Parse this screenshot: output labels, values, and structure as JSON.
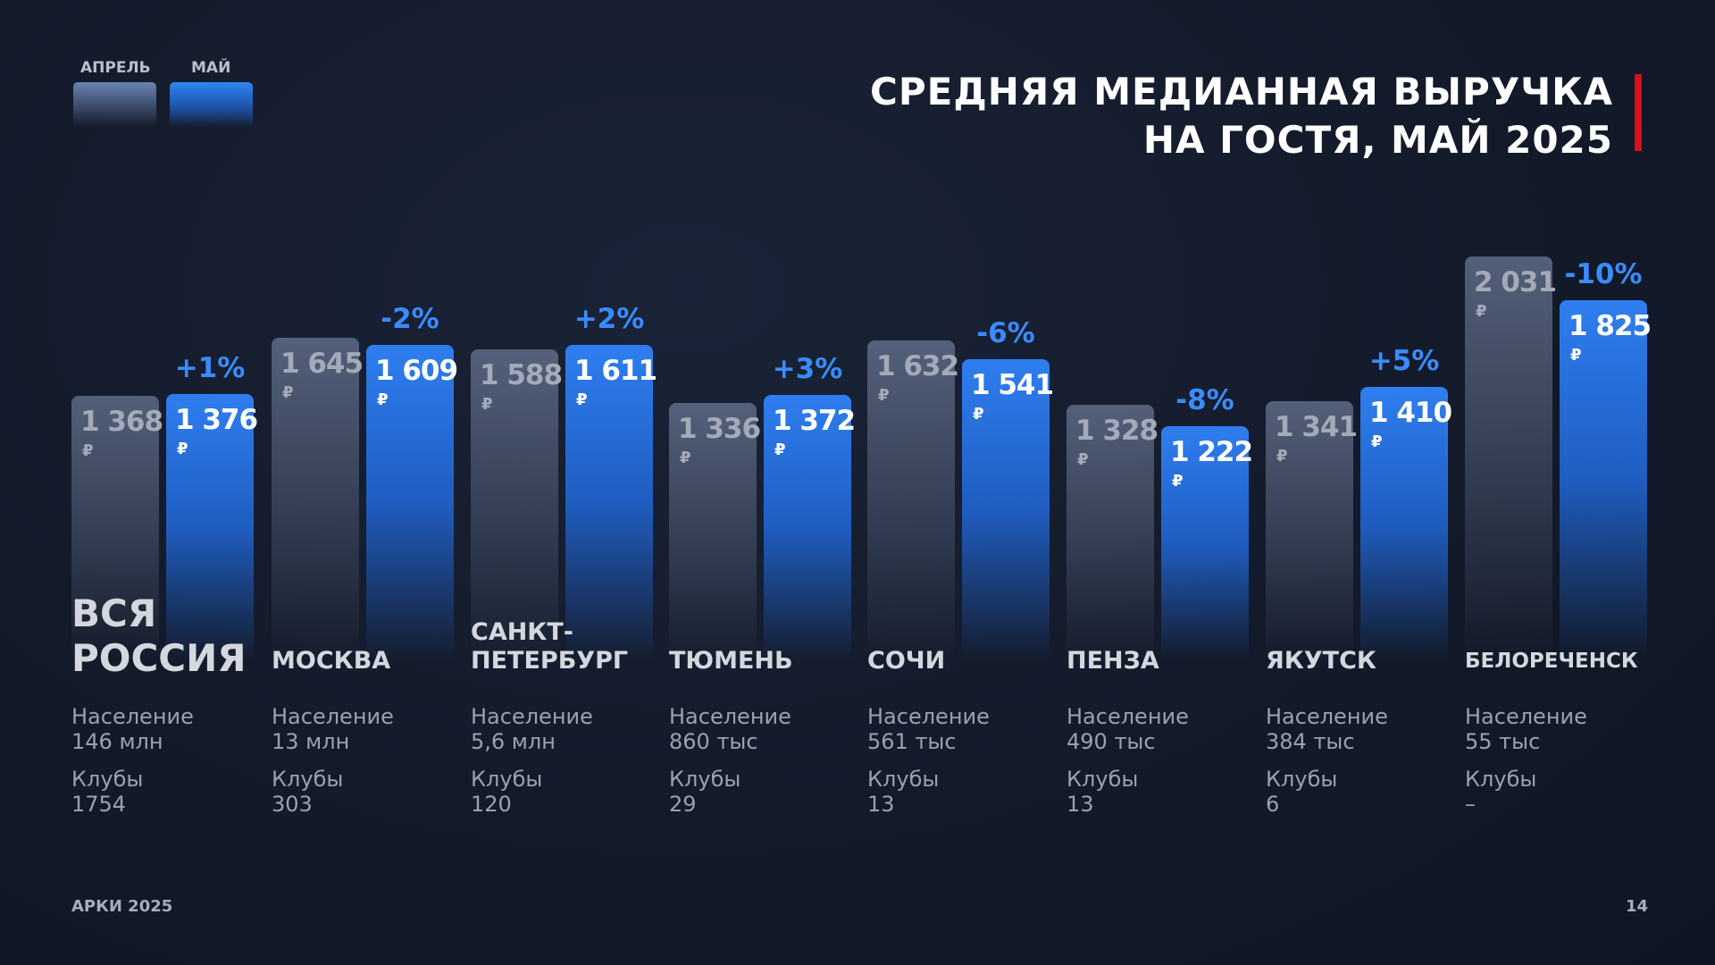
{
  "title_lines": [
    "СРЕДНЯЯ МЕДИАННАЯ ВЫРУЧКА",
    "НА ГОСТЯ, МАЙ 2025"
  ],
  "legend": [
    {
      "label": "АПРЕЛЬ",
      "color": "#5f6c87"
    },
    {
      "label": "МАЙ",
      "color": "#2f7ef0"
    }
  ],
  "footer": {
    "left": "АРКИ 2025",
    "page": "14"
  },
  "currency": "₽",
  "stat_labels": {
    "population": "Население",
    "clubs": "Клубы"
  },
  "chart_data": {
    "type": "bar",
    "categories": [
      "ВСЯ РОССИЯ",
      "МОСКВА",
      "САНКТ-ПЕТЕРБУРГ",
      "ТЮМЕНЬ",
      "СОЧИ",
      "ПЕНЗА",
      "ЯКУТСК",
      "БЕЛОРЕЧЕНСК"
    ],
    "series": [
      {
        "name": "АПРЕЛЬ",
        "values": [
          1368,
          1645,
          1588,
          1336,
          1632,
          1328,
          1341,
          2031
        ],
        "labels": [
          "1 368",
          "1 645",
          "1 588",
          "1 336",
          "1 632",
          "1 328",
          "1 341",
          "2 031"
        ]
      },
      {
        "name": "МАЙ",
        "values": [
          1376,
          1609,
          1611,
          1372,
          1541,
          1222,
          1410,
          1825
        ],
        "labels": [
          "1 376",
          "1 609",
          "1 611",
          "1 372",
          "1 541",
          "1 222",
          "1 410",
          "1 825"
        ]
      }
    ],
    "change": [
      "+1%",
      "-2%",
      "+2%",
      "+3%",
      "-6%",
      "-8%",
      "+5%",
      "-10%"
    ],
    "population": [
      "146 млн",
      "13 млн",
      "5,6 млн",
      "860 тыс",
      "561 тыс",
      "490 тыс",
      "384 тыс",
      "55 тыс"
    ],
    "clubs": [
      "1754",
      "303",
      "120",
      "29",
      "13",
      "13",
      "6",
      "–"
    ],
    "unit": "₽",
    "grid": false,
    "legend_position": "top-left"
  }
}
